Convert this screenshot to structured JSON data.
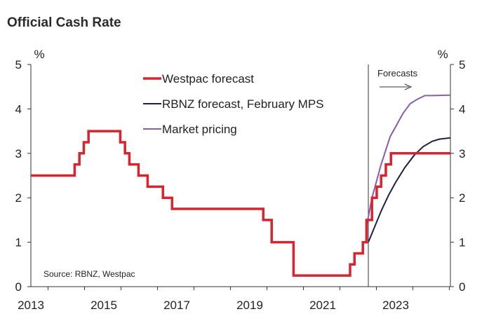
{
  "chart_data": {
    "type": "line",
    "title": "Official Cash Rate",
    "ylabel_left": "%",
    "ylabel_right": "%",
    "xlim": [
      2013.0,
      2024.5
    ],
    "ylim": [
      0,
      5
    ],
    "yticks": [
      "0",
      "1",
      "2",
      "3",
      "4",
      "5"
    ],
    "xticks": [
      {
        "value": 2013,
        "label": "2013"
      },
      {
        "value": 2015,
        "label": "2015"
      },
      {
        "value": 2017,
        "label": "2017"
      },
      {
        "value": 2019,
        "label": "2019"
      },
      {
        "value": 2021,
        "label": "2021"
      },
      {
        "value": 2023,
        "label": "2023"
      }
    ],
    "forecast_start": 2022.25,
    "forecasts_label": "Forecasts",
    "source": "Source: RBNZ, Westpac",
    "legend": [
      "Westpac forecast",
      "RBNZ forecast, February MPS",
      "Market pricing"
    ],
    "series": [
      {
        "name": "Westpac forecast",
        "color": "#d9232f",
        "step": true,
        "points": [
          [
            2013.0,
            2.5
          ],
          [
            2014.2,
            2.75
          ],
          [
            2014.33,
            3.0
          ],
          [
            2014.45,
            3.25
          ],
          [
            2014.58,
            3.5
          ],
          [
            2015.45,
            3.25
          ],
          [
            2015.58,
            3.0
          ],
          [
            2015.7,
            2.75
          ],
          [
            2015.95,
            2.5
          ],
          [
            2016.2,
            2.25
          ],
          [
            2016.62,
            2.0
          ],
          [
            2016.87,
            1.75
          ],
          [
            2019.37,
            1.5
          ],
          [
            2019.6,
            1.0
          ],
          [
            2020.2,
            0.25
          ],
          [
            2021.75,
            0.5
          ],
          [
            2021.87,
            0.75
          ],
          [
            2022.1,
            1.0
          ],
          [
            2022.2,
            1.5
          ],
          [
            2022.35,
            2.0
          ],
          [
            2022.48,
            2.25
          ],
          [
            2022.6,
            2.5
          ],
          [
            2022.73,
            2.75
          ],
          [
            2022.87,
            3.0
          ],
          [
            2024.5,
            3.0
          ]
        ]
      },
      {
        "name": "RBNZ forecast, February MPS",
        "color": "#1f1f4a",
        "step": false,
        "points": [
          [
            2022.25,
            1.0
          ],
          [
            2022.4,
            1.3
          ],
          [
            2022.6,
            1.7
          ],
          [
            2022.8,
            2.05
          ],
          [
            2023.0,
            2.35
          ],
          [
            2023.25,
            2.68
          ],
          [
            2023.5,
            2.95
          ],
          [
            2023.75,
            3.15
          ],
          [
            2024.0,
            3.27
          ],
          [
            2024.2,
            3.32
          ],
          [
            2024.5,
            3.35
          ]
        ]
      },
      {
        "name": "Market pricing",
        "color": "#8a5cb0",
        "step": false,
        "points": [
          [
            2022.2,
            1.35
          ],
          [
            2022.35,
            2.0
          ],
          [
            2022.6,
            2.75
          ],
          [
            2022.85,
            3.38
          ],
          [
            2023.0,
            3.6
          ],
          [
            2023.2,
            3.9
          ],
          [
            2023.4,
            4.12
          ],
          [
            2023.6,
            4.22
          ],
          [
            2023.8,
            4.3
          ],
          [
            2024.0,
            4.3
          ],
          [
            2024.5,
            4.31
          ]
        ]
      }
    ]
  }
}
